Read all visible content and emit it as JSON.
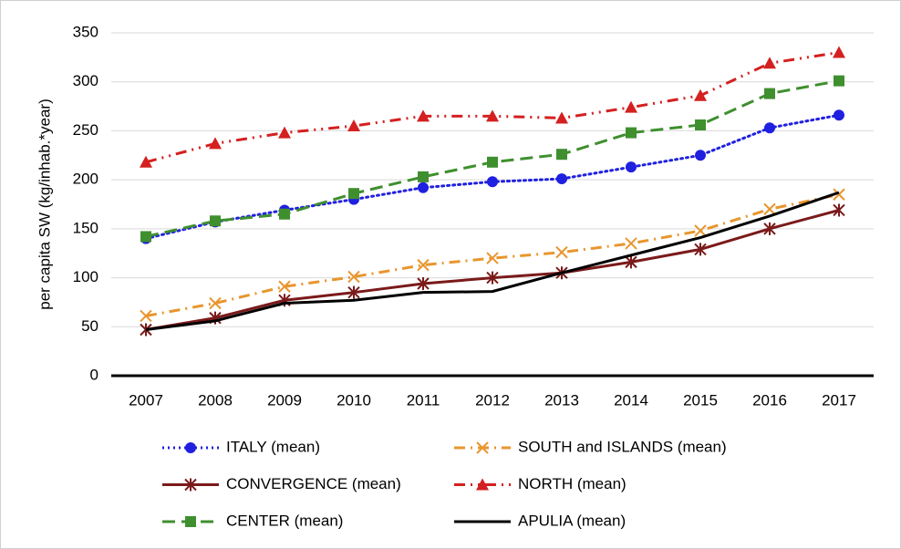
{
  "chart_data": {
    "type": "line",
    "y_label": "per capita SW (kg/inhab.*year)",
    "categories": [
      "2007",
      "2008",
      "2009",
      "2010",
      "2011",
      "2012",
      "2013",
      "2014",
      "2015",
      "2016",
      "2017"
    ],
    "ylim": [
      0,
      350
    ],
    "yticks": [
      0,
      50,
      100,
      150,
      200,
      250,
      300,
      350
    ],
    "grid": true,
    "legend": "bottom",
    "series": [
      {
        "name": "ITALY (mean)",
        "color": "#2020e0",
        "dash": "dotted",
        "marker": "circle",
        "values": [
          140,
          157,
          169,
          180,
          192,
          198,
          201,
          213,
          225,
          253,
          266
        ]
      },
      {
        "name": "SOUTH and ISLANDS (mean)",
        "color": "#e8962e",
        "dash": "dashdot",
        "marker": "x",
        "values": [
          61,
          74,
          91,
          101,
          113,
          120,
          126,
          135,
          148,
          170,
          185
        ]
      },
      {
        "name": "CONVERGENCE (mean)",
        "color": "#7b1a1a",
        "dash": "solid",
        "marker": "star",
        "values": [
          47,
          59,
          77,
          85,
          94,
          100,
          105,
          116,
          129,
          150,
          169
        ]
      },
      {
        "name": "NORTH (mean)",
        "color": "#d42020",
        "dash": "dashdotdot",
        "marker": "triangle",
        "values": [
          218,
          237,
          248,
          255,
          265,
          265,
          263,
          274,
          286,
          319,
          330
        ]
      },
      {
        "name": "CENTER (mean)",
        "color": "#3f8f2f",
        "dash": "dashed",
        "marker": "square",
        "values": [
          142,
          158,
          165,
          186,
          203,
          218,
          226,
          248,
          256,
          288,
          301
        ]
      },
      {
        "name": "APULIA (mean)",
        "color": "#000000",
        "dash": "solid",
        "marker": "none",
        "values": [
          47,
          56,
          74,
          77,
          85,
          86,
          105,
          123,
          141,
          163,
          187
        ]
      }
    ]
  }
}
